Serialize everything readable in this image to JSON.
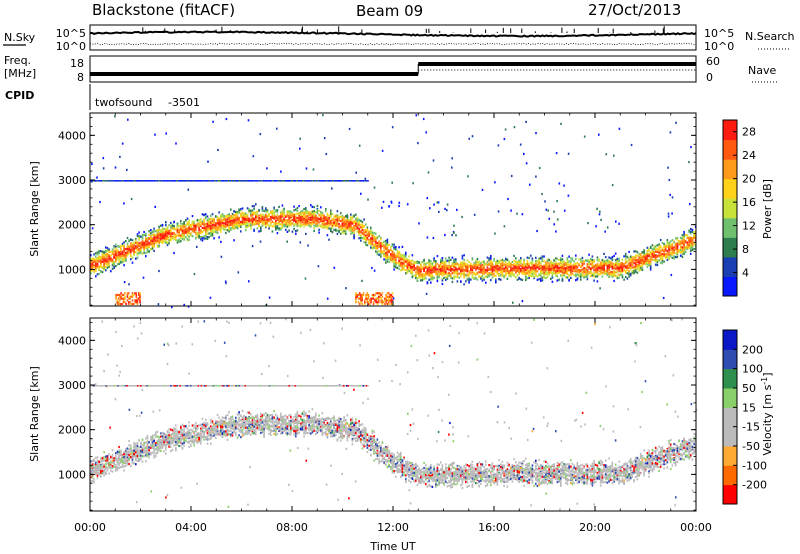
{
  "header": {
    "station": "Blackstone (fitACF)",
    "beam": "Beam 09",
    "date": "27/Oct/2013"
  },
  "noise_panel": {
    "left_label": "N.Sky",
    "right_label": "N.Search",
    "left_ticks": [
      "10^5",
      "10^0"
    ],
    "right_ticks": [
      "10^5",
      "10^0"
    ]
  },
  "freq_panel": {
    "left_label_1": "Freq.",
    "left_label_2": "[MHz]",
    "left_ticks": [
      "18",
      "8"
    ],
    "right_label": "Nave",
    "right_ticks": [
      "60",
      "0"
    ]
  },
  "cpid_panel": {
    "label": "CPID",
    "program": "twofsound",
    "cpid": "-3501"
  },
  "colors": {
    "power": [
      "#0a18ff",
      "#1a3fb3",
      "#2e7d4e",
      "#6fbf6f",
      "#c8e23a",
      "#ffd21a",
      "#ff9a1a",
      "#ff5a10",
      "#ff1a10"
    ],
    "velocity": [
      "#ff0000",
      "#ff6a00",
      "#ffaa33",
      "#bbbbbb",
      "#bbbbbb",
      "#8ad06a",
      "#2f8f4f",
      "#2e4db0",
      "#0a18c8"
    ]
  },
  "chart_data": [
    {
      "type": "heatmap",
      "title": "",
      "xlabel": "Time UT",
      "ylabel": "Slant Range [km]",
      "xlim": [
        "00:00",
        "24:00"
      ],
      "ylim": [
        180,
        4500
      ],
      "x_ticks": [
        "00:00",
        "04:00",
        "08:00",
        "12:00",
        "16:00",
        "20:00",
        "00:00"
      ],
      "y_ticks": [
        1000,
        2000,
        3000,
        4000
      ],
      "colorbar": {
        "label": "Power [dB]",
        "ticks": [
          4,
          8,
          12,
          16,
          20,
          24,
          28
        ],
        "range": [
          0,
          30
        ]
      },
      "features": [
        {
          "name": "main echo band",
          "time_hours": [
            0,
            3,
            6,
            9,
            10.5,
            12,
            13,
            17,
            21,
            24
          ],
          "range_km": [
            1100,
            1800,
            2150,
            2150,
            2000,
            1300,
            1000,
            1050,
            1050,
            1700
          ]
        },
        {
          "name": "horizontal echo line",
          "range_km": 3000,
          "time_hours": [
            0,
            11
          ]
        },
        {
          "name": "near-range echoes",
          "range_km": [
            250,
            500
          ],
          "time_hours": [
            [
              1,
              2
            ],
            [
              10.5,
              12
            ]
          ]
        }
      ]
    },
    {
      "type": "heatmap",
      "title": "",
      "xlabel": "Time UT",
      "ylabel": "Slant Range [km]",
      "xlim": [
        "00:00",
        "24:00"
      ],
      "ylim": [
        180,
        4500
      ],
      "x_ticks": [
        "00:00",
        "04:00",
        "08:00",
        "12:00",
        "16:00",
        "20:00",
        "00:00"
      ],
      "y_ticks": [
        1000,
        2000,
        3000,
        4000
      ],
      "colorbar": {
        "label": "Velocity [m s^-1]",
        "ticks": [
          200,
          100,
          50,
          15,
          -15,
          -50,
          -100,
          -200
        ],
        "range": [
          -250,
          250
        ]
      },
      "features": [
        {
          "name": "main echo band",
          "time_hours": [
            0,
            3,
            6,
            9,
            10.5,
            12,
            13,
            17,
            21,
            24
          ],
          "range_km": [
            1100,
            1800,
            2150,
            2150,
            2000,
            1300,
            1000,
            1050,
            1050,
            1700
          ]
        },
        {
          "name": "horizontal echo line",
          "range_km": 3000,
          "time_hours": [
            0,
            11
          ]
        }
      ]
    }
  ]
}
